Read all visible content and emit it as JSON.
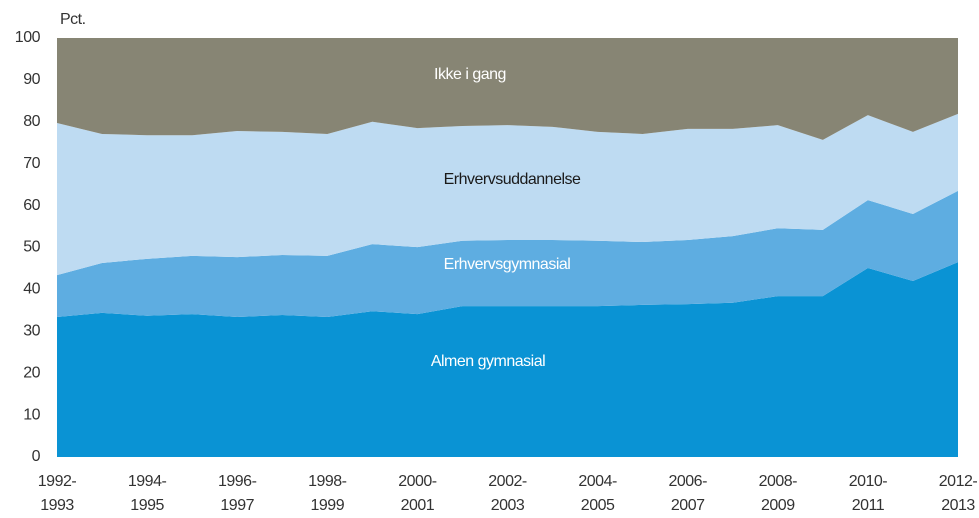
{
  "chart_data": {
    "type": "stacked_area",
    "y_label": "Pct.",
    "categories": [
      "1992-1993",
      null,
      "1994-1995",
      null,
      "1996-1997",
      null,
      "1998-1999",
      null,
      "2000-2001",
      null,
      "2002-2003",
      null,
      "2004-2005",
      null,
      "2006-2007",
      null,
      "2008-2009",
      null,
      "2010-2011",
      null,
      "2012-2013"
    ],
    "series": [
      {
        "name": "Almen gymnasial",
        "color": "#0a93d4",
        "label_color": "#ffffff",
        "values": [
          33.4,
          34.4,
          33.7,
          34.1,
          33.4,
          33.9,
          33.4,
          34.8,
          34.1,
          36,
          36,
          36,
          36,
          36.3,
          36.5,
          36.8,
          38.4,
          38.4,
          45.1,
          42,
          46.5
        ]
      },
      {
        "name": "Erhvervsgymnasial",
        "color": "#5eade1",
        "label_color": "#ffffff",
        "values": [
          10,
          11.9,
          13.6,
          13.9,
          14.3,
          14.3,
          14.6,
          16,
          16,
          15.6,
          15.8,
          15.8,
          15.6,
          15,
          15.3,
          15.9,
          16.2,
          15.8,
          16.2,
          16,
          17
        ]
      },
      {
        "name": "Erhvervsuddannelse",
        "color": "#bedbf2",
        "label_color": "#1a1a1a",
        "values": [
          36.3,
          30.8,
          29.5,
          28.8,
          30.1,
          29.4,
          29.1,
          29.2,
          28.4,
          27.4,
          27.4,
          27,
          26,
          25.8,
          26.5,
          25.6,
          24.6,
          21.5,
          20.3,
          19.6,
          18.4
        ]
      },
      {
        "name": "Ikke i gang",
        "color": "#878574",
        "label_color": "#ffffff",
        "values": [
          20.3,
          22.9,
          23.2,
          23.2,
          22.2,
          22.4,
          22.9,
          20,
          21.5,
          21,
          20.8,
          21.2,
          22.4,
          22.9,
          21.7,
          21.7,
          20.8,
          24.3,
          18.4,
          22.4,
          18.1
        ]
      }
    ],
    "ylim": [
      0,
      100
    ],
    "yticks": [
      0,
      10,
      20,
      30,
      40,
      50,
      60,
      70,
      80,
      90,
      100
    ],
    "grid": false
  }
}
